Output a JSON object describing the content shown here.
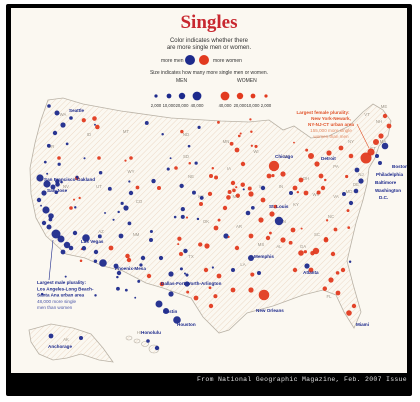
{
  "title": "Singles",
  "subtitle_lines": [
    "Color indicates whether there",
    "are more single men or women."
  ],
  "legend": {
    "more_men": "more men",
    "more_women": "more women",
    "size_note": "Size indicates how many more single men or women.",
    "men_header": "MEN",
    "women_header": "WOMEN",
    "men_ticks": [
      "2,000",
      "10,000",
      "20,000",
      "40,000"
    ],
    "women_ticks": [
      "40,000",
      "20,000",
      "10,000",
      "2,000"
    ],
    "colors": {
      "men": "#1d2a8c",
      "women": "#e23a1f"
    }
  },
  "annotations": {
    "female": {
      "lines": [
        "Largest female plurality:",
        "New York-Newark,",
        "NY-NJ-CT urban area",
        "155,000 more single",
        "women than men"
      ]
    },
    "male": {
      "lines": [
        "Largest male plurality:",
        "Los Angeles-Long Beach-",
        "Santa Ana urban area",
        "48,000 more single",
        "men than women"
      ]
    }
  },
  "city_labels": [
    "Seattle",
    "Boston",
    "Detroit",
    "Philadelphia",
    "Baltimore",
    "Washington",
    "D.C.",
    "San Francisco-Oakland",
    "San Jose",
    "Las Vegas",
    "Chicago",
    "St. Louis",
    "Phoenix-Mesa",
    "Dallas-Fort Worth-Arlington",
    "Memphis",
    "Atlanta",
    "Austin",
    "Houston",
    "New Orleans",
    "Miami",
    "Anchorage",
    "Honolulu"
  ],
  "state_abbrevs": [
    "WA",
    "OR",
    "ID",
    "MT",
    "WY",
    "NV",
    "UT",
    "CO",
    "AZ",
    "NM",
    "ND",
    "SD",
    "NE",
    "KS",
    "OK",
    "TX",
    "MN",
    "IA",
    "MO",
    "AR",
    "LA",
    "WI",
    "IL",
    "MI",
    "IN",
    "OH",
    "KY",
    "TN",
    "MS",
    "AL",
    "GA",
    "FL",
    "SC",
    "NC",
    "VA",
    "WV",
    "PA",
    "NY",
    "ME",
    "VT",
    "NH",
    "MA",
    "CT",
    "NJ",
    "DE",
    "MD",
    "AK",
    "HI"
  ],
  "caption": "From National Geographic Magazine, Feb. 2007 Issue"
}
